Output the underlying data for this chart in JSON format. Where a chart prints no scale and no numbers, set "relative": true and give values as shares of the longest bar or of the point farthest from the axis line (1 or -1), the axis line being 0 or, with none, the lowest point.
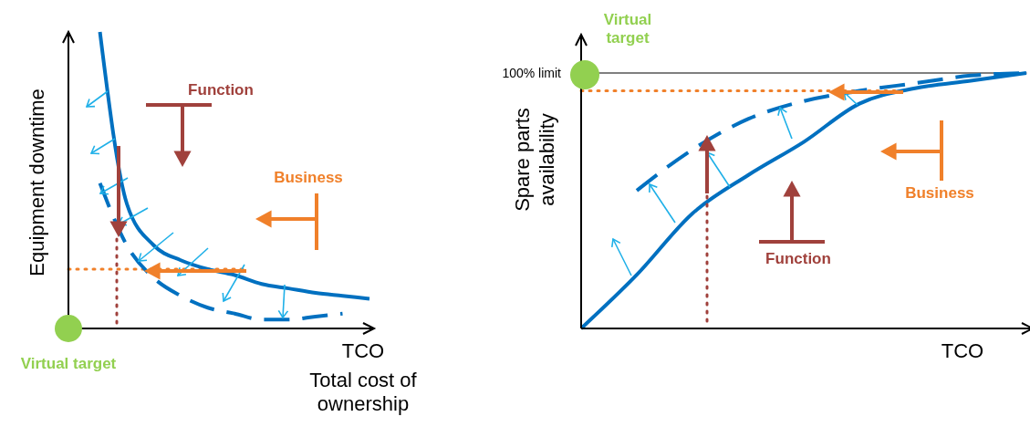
{
  "chart_data": [
    {
      "type": "line",
      "relative": true,
      "xlabel": "TCO",
      "ylabel": "Equipment downtime",
      "categories": [
        null,
        null,
        null,
        null,
        null,
        null,
        null,
        null,
        null,
        null,
        null,
        null
      ],
      "legend": false,
      "grid": false,
      "marker": "none",
      "series": [
        {
          "color": "#0070c0",
          "line_style": "solid",
          "values": [
            null,
            1,
            0.42,
            0.28,
            0.23,
            0.2,
            0.18,
            0.15,
            0.135,
            0.12,
            0.11,
            0.1
          ]
        },
        {
          "color": "#0070c0",
          "line_style": "dashed",
          "values": [
            null,
            0.49,
            0.28,
            0.17,
            0.11,
            0.07,
            0.05,
            0.03,
            0.03,
            0.04,
            0.05,
            null
          ]
        }
      ],
      "ref_lines": [
        {
          "axis": "y",
          "value": 0.2,
          "color": "#f0802a",
          "line_style": "dotted"
        }
      ],
      "annotations": [
        "Function",
        "Business",
        "Virtual target",
        "Total cost of ownership"
      ]
    },
    {
      "type": "line",
      "relative": true,
      "xlabel": "TCO",
      "ylabel": "Spare parts availability",
      "categories": [
        null,
        null,
        null,
        null,
        null,
        null,
        null,
        null,
        null
      ],
      "legend": false,
      "grid": false,
      "marker": "none",
      "series": [
        {
          "color": "#0070c0",
          "line_style": "solid",
          "values": [
            0,
            0.21,
            0.45,
            0.6,
            0.73,
            0.88,
            0.94,
            0.97,
            1
          ]
        },
        {
          "color": "#0070c0",
          "line_style": "dashed",
          "values": [
            null,
            0.54,
            0.7,
            0.82,
            0.89,
            0.93,
            0.96,
            0.99,
            1
          ]
        }
      ],
      "ref_lines": [
        {
          "axis": "y",
          "value": 1,
          "label": "100% limit",
          "color": "#000000",
          "line_style": "solid"
        },
        {
          "axis": "y",
          "value": 0.93,
          "color": "#f0802a",
          "line_style": "dotted"
        }
      ],
      "annotations": [
        "Virtual target",
        "Function",
        "Business"
      ]
    }
  ]
}
